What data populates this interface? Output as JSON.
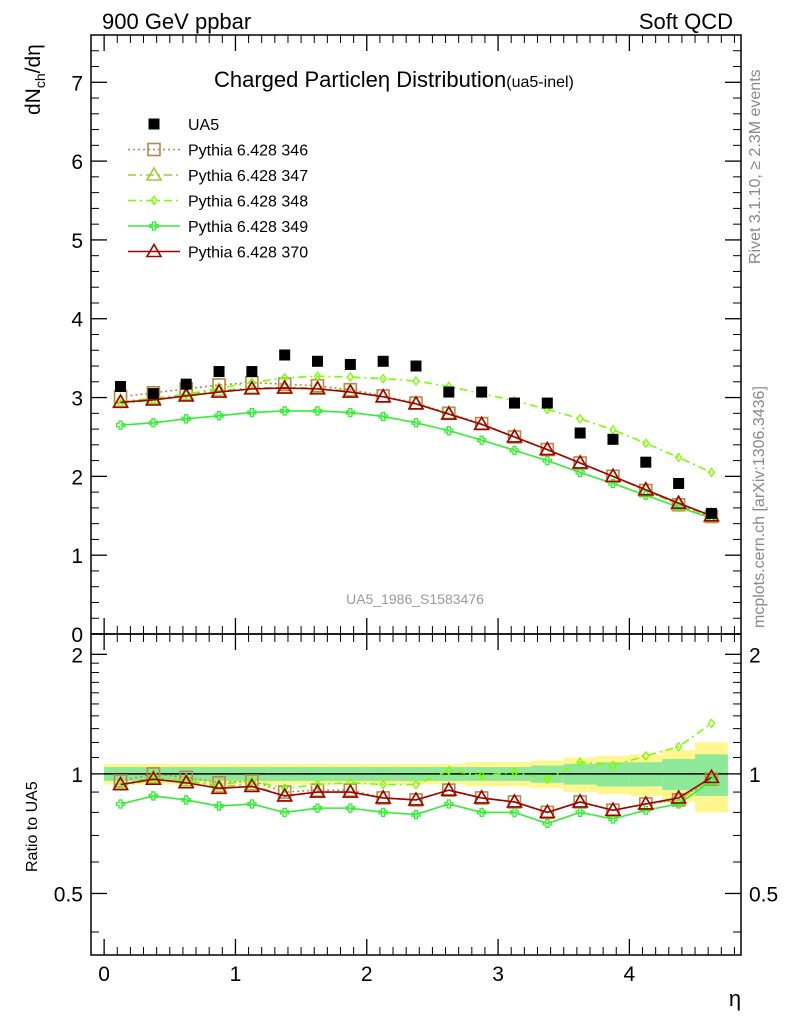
{
  "header": {
    "left": "900 GeV ppbar",
    "right": "Soft QCD"
  },
  "side_labels": {
    "rivet": "Rivet 3.1.10, ≥ 2.3M events",
    "mcplots": "mcplots.cern.ch [arXiv:1306.3436]"
  },
  "chart_data": {
    "type": "line",
    "title": "Charged Particle",
    "title_symbol": "η",
    "title_rest": " Distribution",
    "title_sub": "(ua5-inel)",
    "ylabel_main": "dN",
    "ylabel_sub": "ch",
    "ylabel_rest": "/dη",
    "ylabel_ratio": "Ratio to UA5",
    "xlabel": "η",
    "watermark": "UA5_1986_S1583476",
    "xlim": [
      -0.1,
      4.85
    ],
    "ylim_main": [
      0,
      7.6
    ],
    "ylim_ratio": [
      0.35,
      2.25
    ],
    "xticks": [
      "0",
      "1",
      "2",
      "3",
      "4"
    ],
    "yticks_main": [
      "0",
      "1",
      "2",
      "3",
      "4",
      "5",
      "6",
      "7"
    ],
    "yticks_ratio": [
      "0.5",
      "1",
      "2"
    ],
    "x": [
      0.125,
      0.375,
      0.625,
      0.875,
      1.125,
      1.375,
      1.625,
      1.875,
      2.125,
      2.375,
      2.625,
      2.875,
      3.125,
      3.375,
      3.625,
      3.875,
      4.125,
      4.375,
      4.625
    ],
    "data": {
      "name": "UA5",
      "color": "#000000",
      "values": [
        3.14,
        3.05,
        3.17,
        3.33,
        3.33,
        3.54,
        3.46,
        3.42,
        3.46,
        3.4,
        3.07,
        3.07,
        2.93,
        2.93,
        2.55,
        2.47,
        2.18,
        1.91,
        1.53
      ]
    },
    "series": [
      {
        "name": "Pythia 6.428 346",
        "color": "#b8864b",
        "marker": "square",
        "dash": "2,3",
        "values": [
          3.01,
          3.06,
          3.11,
          3.16,
          3.19,
          3.17,
          3.15,
          3.1,
          3.02,
          2.93,
          2.8,
          2.67,
          2.5,
          2.34,
          2.17,
          2.0,
          1.82,
          1.64,
          1.49
        ]
      },
      {
        "name": "Pythia 6.428 347",
        "color": "#9acd32",
        "marker": "triangle",
        "dash": "8,4,2,4",
        "values": [
          2.95,
          2.99,
          3.04,
          3.09,
          3.12,
          3.13,
          3.12,
          3.08,
          3.01,
          2.92,
          2.8,
          2.66,
          2.5,
          2.34,
          2.17,
          2.0,
          1.82,
          1.64,
          1.49
        ]
      },
      {
        "name": "Pythia 6.428 348",
        "color": "#7cfc00",
        "marker": "diamond",
        "dash": "8,4,2,4",
        "values": [
          2.92,
          2.97,
          3.04,
          3.12,
          3.19,
          3.25,
          3.27,
          3.26,
          3.24,
          3.21,
          3.14,
          3.05,
          2.96,
          2.85,
          2.73,
          2.59,
          2.42,
          2.24,
          2.05
        ]
      },
      {
        "name": "Pythia 6.428 349",
        "color": "#33ee33",
        "marker": "cross",
        "dash": "",
        "values": [
          2.65,
          2.68,
          2.73,
          2.77,
          2.81,
          2.83,
          2.83,
          2.81,
          2.76,
          2.68,
          2.58,
          2.46,
          2.33,
          2.2,
          2.05,
          1.91,
          1.76,
          1.61,
          1.47
        ]
      },
      {
        "name": "Pythia 6.428 370",
        "color": "#a00000",
        "marker": "triangle",
        "dash": "",
        "values": [
          2.94,
          2.97,
          3.02,
          3.07,
          3.11,
          3.12,
          3.11,
          3.07,
          3.01,
          2.92,
          2.79,
          2.66,
          2.5,
          2.34,
          2.17,
          2.0,
          1.83,
          1.66,
          1.5
        ]
      }
    ],
    "ratio_series": [
      {
        "name": "Pythia 6.428 346",
        "values": [
          0.96,
          1.0,
          0.98,
          0.95,
          0.96,
          0.9,
          0.91,
          0.91,
          0.87,
          0.86,
          0.91,
          0.87,
          0.85,
          0.8,
          0.85,
          0.81,
          0.84,
          0.86,
          0.97
        ]
      },
      {
        "name": "Pythia 6.428 347",
        "values": [
          0.94,
          0.98,
          0.96,
          0.93,
          0.94,
          0.88,
          0.9,
          0.9,
          0.87,
          0.86,
          0.91,
          0.87,
          0.85,
          0.8,
          0.85,
          0.81,
          0.84,
          0.86,
          0.97
        ]
      },
      {
        "name": "Pythia 6.428 348",
        "values": [
          0.93,
          0.97,
          0.96,
          0.94,
          0.96,
          0.92,
          0.94,
          0.95,
          0.94,
          0.94,
          1.02,
          0.99,
          1.01,
          0.97,
          1.07,
          1.05,
          1.11,
          1.17,
          1.34
        ]
      },
      {
        "name": "Pythia 6.428 349",
        "values": [
          0.84,
          0.88,
          0.86,
          0.83,
          0.84,
          0.8,
          0.82,
          0.82,
          0.8,
          0.79,
          0.84,
          0.8,
          0.8,
          0.75,
          0.8,
          0.77,
          0.81,
          0.84,
          0.96
        ]
      },
      {
        "name": "Pythia 6.428 370",
        "values": [
          0.94,
          0.97,
          0.95,
          0.92,
          0.93,
          0.88,
          0.9,
          0.9,
          0.87,
          0.86,
          0.91,
          0.87,
          0.85,
          0.8,
          0.85,
          0.81,
          0.84,
          0.87,
          0.98
        ]
      }
    ],
    "ratio_band_green": [
      0.04,
      0.04,
      0.04,
      0.04,
      0.04,
      0.04,
      0.04,
      0.04,
      0.04,
      0.04,
      0.04,
      0.04,
      0.04,
      0.05,
      0.06,
      0.07,
      0.07,
      0.09,
      0.12
    ],
    "ratio_band_yellow": [
      0.06,
      0.06,
      0.06,
      0.06,
      0.06,
      0.06,
      0.06,
      0.06,
      0.06,
      0.06,
      0.06,
      0.07,
      0.07,
      0.08,
      0.1,
      0.11,
      0.12,
      0.15,
      0.2
    ]
  }
}
